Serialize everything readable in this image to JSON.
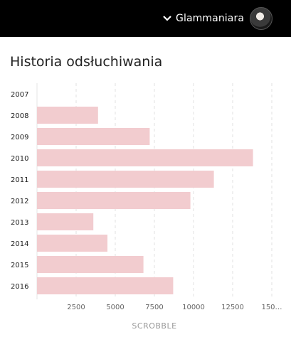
{
  "header": {
    "username": "Glammaniara",
    "icons": {
      "menu": "chevron-down-icon",
      "avatar": "avatar"
    }
  },
  "section": {
    "title": "Historia odsłuchiwania"
  },
  "chart_data": {
    "type": "bar",
    "orientation": "horizontal",
    "categories": [
      "2007",
      "2008",
      "2009",
      "2010",
      "2011",
      "2012",
      "2013",
      "2014",
      "2015",
      "2016"
    ],
    "values": [
      0,
      3900,
      7200,
      13800,
      11300,
      9800,
      3600,
      4500,
      6800,
      8700
    ],
    "xlabel": "SCROBBLE",
    "xticks": [
      "2500",
      "5000",
      "7500",
      "10000",
      "12500",
      "150…"
    ],
    "xlim": [
      0,
      15000
    ],
    "grid": true,
    "bar_color": "#f2cccf"
  }
}
